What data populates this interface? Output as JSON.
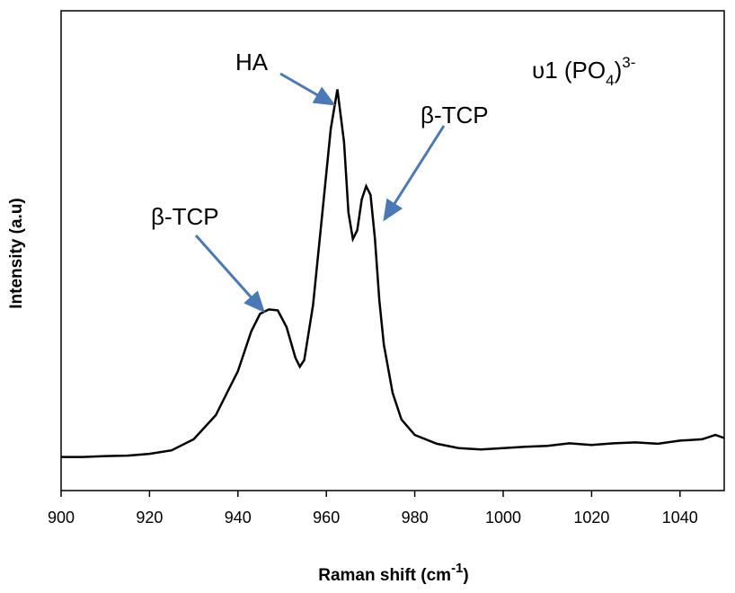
{
  "chart_data": {
    "type": "line",
    "title": "",
    "xlabel": "Raman shift (cm",
    "xlabel_sup": "-1",
    "xlabel_end": ")",
    "ylabel": "Intensity (a.u)",
    "xlim": [
      900,
      1050
    ],
    "ylim": [
      0,
      1
    ],
    "x_ticks": [
      "900",
      "920",
      "940",
      "960",
      "980",
      "1000",
      "1020",
      "1040"
    ],
    "grid": false,
    "series": [
      {
        "color": "#000000",
        "points": [
          [
            900,
            0.105
          ],
          [
            905,
            0.105
          ],
          [
            910,
            0.107
          ],
          [
            915,
            0.108
          ],
          [
            920,
            0.112
          ],
          [
            925,
            0.12
          ],
          [
            930,
            0.145
          ],
          [
            935,
            0.2
          ],
          [
            940,
            0.3
          ],
          [
            943,
            0.39
          ],
          [
            945,
            0.43
          ],
          [
            947,
            0.44
          ],
          [
            949,
            0.438
          ],
          [
            951,
            0.4
          ],
          [
            953,
            0.33
          ],
          [
            954,
            0.31
          ],
          [
            955,
            0.325
          ],
          [
            957,
            0.45
          ],
          [
            959,
            0.65
          ],
          [
            961,
            0.85
          ],
          [
            962.5,
            0.94
          ],
          [
            964,
            0.82
          ],
          [
            965,
            0.66
          ],
          [
            966,
            0.6
          ],
          [
            967,
            0.62
          ],
          [
            968,
            0.69
          ],
          [
            969,
            0.72
          ],
          [
            970,
            0.7
          ],
          [
            971,
            0.6
          ],
          [
            972,
            0.46
          ],
          [
            973,
            0.36
          ],
          [
            975,
            0.25
          ],
          [
            977,
            0.19
          ],
          [
            980,
            0.155
          ],
          [
            985,
            0.135
          ],
          [
            990,
            0.125
          ],
          [
            995,
            0.122
          ],
          [
            1000,
            0.125
          ],
          [
            1005,
            0.128
          ],
          [
            1010,
            0.13
          ],
          [
            1015,
            0.136
          ],
          [
            1020,
            0.132
          ],
          [
            1025,
            0.136
          ],
          [
            1030,
            0.138
          ],
          [
            1035,
            0.135
          ],
          [
            1040,
            0.142
          ],
          [
            1045,
            0.145
          ],
          [
            1048,
            0.155
          ],
          [
            1050,
            0.148
          ]
        ]
      }
    ],
    "annotations": [
      {
        "text": "HA",
        "points_to": [
          962.5,
          0.94
        ]
      },
      {
        "text": "β-TCP",
        "points_to": [
          969,
          0.72
        ]
      },
      {
        "text": "β-TCP",
        "points_to": [
          947,
          0.44
        ]
      },
      {
        "text_main": "υ1 (PO",
        "sub": "4",
        "mid": ")",
        "sup": "3-"
      }
    ]
  }
}
